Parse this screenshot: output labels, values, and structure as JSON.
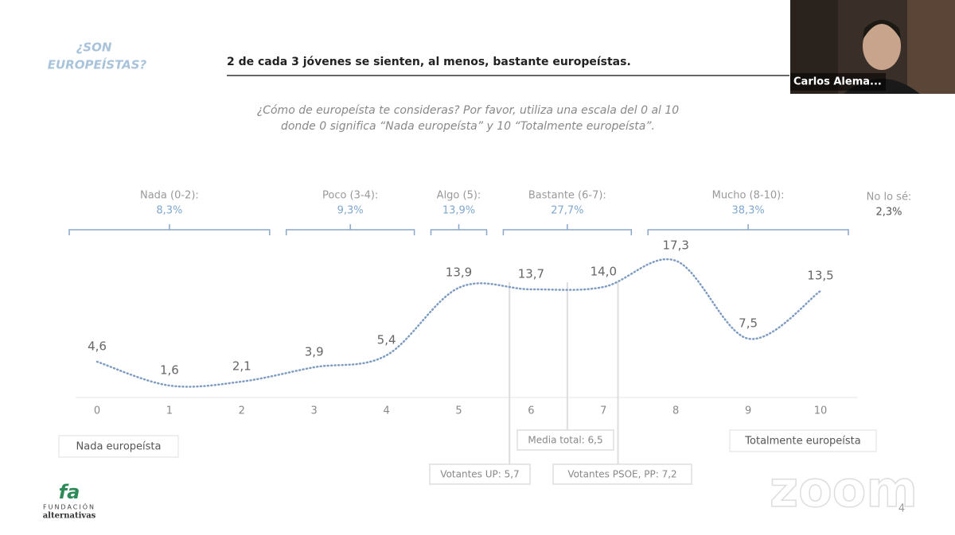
{
  "slide": {
    "section": [
      "¿SON",
      "EUROPEÍSTAS?"
    ],
    "headline": "2 de cada 3 jóvenes se sienten, al menos, bastante europeístas.",
    "page_number": "4",
    "logo": {
      "mark": "fa",
      "line1": "FUNDACIÓN",
      "line2": "alternativas"
    }
  },
  "video": {
    "participant": "Carlos Alema..."
  },
  "watermark": "zoom",
  "chart_data": {
    "type": "line",
    "subtitle": [
      "¿Cómo de europeísta te consideras? Por favor, utiliza una escala del 0 al 10",
      "donde 0 significa “Nada europeísta” y 10 “Totalmente europeísta”."
    ],
    "x": [
      0,
      1,
      2,
      3,
      4,
      5,
      6,
      7,
      8,
      9,
      10
    ],
    "values": [
      4.6,
      1.6,
      2.1,
      3.9,
      5.4,
      13.9,
      13.7,
      14.0,
      17.3,
      7.5,
      13.5
    ],
    "value_labels": [
      "4,6",
      "1,6",
      "2,1",
      "3,9",
      "5,4",
      "13,9",
      "13,7",
      "14,0",
      "17,3",
      "7,5",
      "13,5"
    ],
    "color": "#7f9cc2",
    "xlim": [
      0,
      10
    ],
    "xticks": [
      0,
      1,
      2,
      3,
      4,
      5,
      6,
      7,
      8,
      9,
      10
    ],
    "ylim": [
      0,
      20
    ],
    "groups": [
      {
        "label": "Nada (0-2):",
        "share": "8,3%",
        "range": [
          0,
          2
        ]
      },
      {
        "label": "Poco (3-4):",
        "share": "9,3%",
        "range": [
          3,
          4
        ]
      },
      {
        "label": "Algo (5):",
        "share": "13,9%",
        "range": [
          5,
          5
        ]
      },
      {
        "label": "Bastante (6-7):",
        "share": "27,7%",
        "range": [
          6,
          7
        ]
      },
      {
        "label": "Mucho (8-10):",
        "share": "38,3%",
        "range": [
          8,
          10
        ]
      },
      {
        "label": "No lo sé:",
        "share": "2,3%"
      }
    ],
    "scale_ends": [
      "Nada europeísta",
      "Totalmente europeísta"
    ],
    "annotations": [
      {
        "text": "Media total: 6,5",
        "value": 6.5
      },
      {
        "text": "Votantes UP: 5,7",
        "value": 5.7
      },
      {
        "text": "Votantes PSOE, PP: 7,2",
        "value": 7.2
      }
    ]
  }
}
